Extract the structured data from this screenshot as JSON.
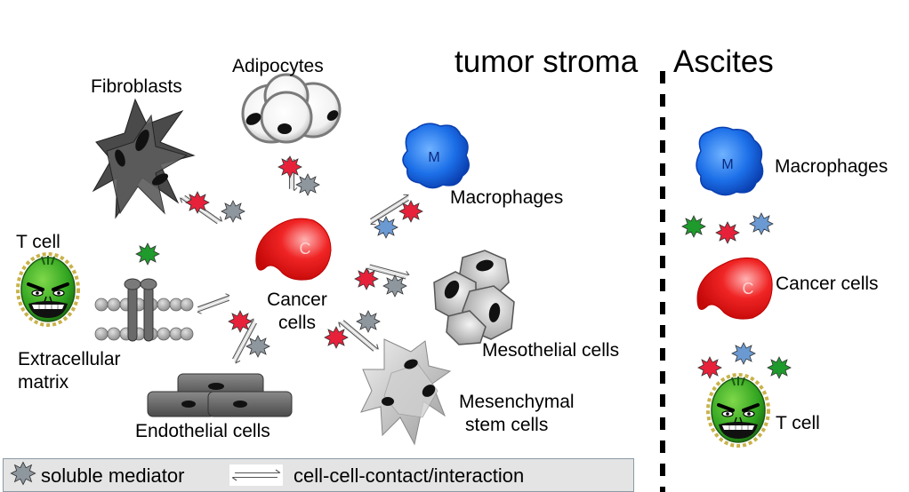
{
  "headers": {
    "tumor_stroma": "tumor stroma",
    "ascites": "Ascites"
  },
  "stroma": {
    "fibroblasts": "Fibroblasts",
    "adipocytes": "Adipocytes",
    "macrophages": "Macrophages",
    "macrophage_letter": "M",
    "t_cell": "T cell",
    "cancer_cells_line1": "Cancer",
    "cancer_cells_line2": "cells",
    "cancer_letter": "C",
    "ecm_line1": "Extracellular",
    "ecm_line2": "matrix",
    "mesothelial": "Mesothelial cells",
    "msc_line1": "Mesenchymal",
    "msc_line2": "stem cells",
    "endothelial": "Endothelial cells"
  },
  "ascites": {
    "macrophages": "Macrophages",
    "macrophage_letter": "M",
    "cancer_cells": "Cancer cells",
    "cancer_letter": "C",
    "t_cell": "T cell"
  },
  "legend": {
    "soluble_mediator": "soluble mediator",
    "contact": "cell-cell-contact/interaction"
  },
  "colors": {
    "mediator_red": "#e8213a",
    "mediator_blue": "#6b9ad3",
    "mediator_gray": "#8e969e",
    "mediator_green": "#1f9a2c",
    "macrophage_blue": "#1c6fe8",
    "cancer_red": "#ee1c1c",
    "t_cell_green": "#2fa31f"
  }
}
